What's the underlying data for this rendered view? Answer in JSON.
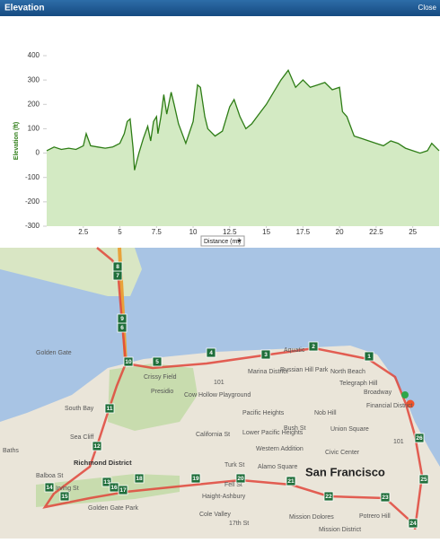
{
  "header": {
    "title": "Elevation",
    "close": "Close"
  },
  "chart_data": {
    "type": "area",
    "y_label": "Elevation (ft)",
    "x_label": "Distance (mi)",
    "color": "#2e7d16",
    "fill": "#d3eac3",
    "x": [
      0,
      0.5,
      1,
      1.5,
      2,
      2.5,
      2.7,
      3,
      3.5,
      4,
      4.5,
      5,
      5.3,
      5.5,
      5.7,
      5.9,
      6.0,
      6.3,
      6.6,
      6.9,
      7.1,
      7.3,
      7.5,
      7.6,
      7.8,
      8.0,
      8.2,
      8.5,
      8.7,
      9,
      9.5,
      10,
      10.3,
      10.5,
      10.8,
      11,
      11.5,
      12,
      12.5,
      12.8,
      13.2,
      13.6,
      14,
      14.5,
      15,
      15.5,
      16,
      16.5,
      17,
      17.5,
      18,
      18.5,
      19,
      19.5,
      20,
      20.2,
      20.5,
      21,
      21.5,
      22,
      22.5,
      23,
      23.5,
      24,
      24.5,
      25,
      25.5,
      26,
      26.3,
      26.8
    ],
    "values": [
      10,
      25,
      15,
      20,
      15,
      30,
      80,
      30,
      25,
      20,
      25,
      40,
      80,
      130,
      140,
      20,
      -70,
      0,
      60,
      110,
      50,
      130,
      150,
      80,
      150,
      240,
      160,
      250,
      200,
      120,
      40,
      130,
      280,
      270,
      150,
      100,
      70,
      90,
      190,
      220,
      150,
      100,
      120,
      160,
      200,
      250,
      300,
      340,
      270,
      300,
      270,
      280,
      290,
      260,
      270,
      170,
      150,
      70,
      60,
      50,
      40,
      30,
      50,
      40,
      20,
      10,
      0,
      10,
      40,
      10
    ],
    "xlim": [
      0,
      26.8
    ],
    "ylim": [
      -300,
      400
    ],
    "xticks": [
      2.5,
      5,
      7.5,
      10,
      12.5,
      15,
      17.5,
      20,
      22.5,
      25
    ],
    "yticks": [
      -300,
      -200,
      -100,
      0,
      100,
      200,
      300,
      400
    ]
  },
  "map": {
    "labels": [
      "Golden Gate",
      "South Bay",
      "Sea Cliff",
      "Baths",
      "Richmond District",
      "Balboa St",
      "Irving St",
      "Golden Gate Park",
      "Presidio",
      "Crissy Field",
      "Cow Hollow Playground",
      "Marina District",
      "Russian Hill Park",
      "Aquatic",
      "North Beach",
      "Telegraph Hill",
      "Broadway",
      "Nob Hill",
      "Financial District",
      "Pacific Heights",
      "Lower Pacific Heights",
      "California St",
      "Western Addition",
      "Alamo Square",
      "Civic Center",
      "Union Square",
      "San Francisco",
      "Haight-Ashbury",
      "Cole Valley",
      "Mission Dolores",
      "Mission District",
      "Potrero Hill",
      "Turk St",
      "Fell St",
      "17th St",
      "Bush St",
      "101",
      "101"
    ],
    "markers": [
      "1",
      "2",
      "3",
      "4",
      "5",
      "6",
      "7",
      "8",
      "9",
      "10",
      "11",
      "12",
      "13",
      "14",
      "15",
      "16",
      "17",
      "18",
      "19",
      "20",
      "21",
      "22",
      "23",
      "24",
      "25",
      "26"
    ]
  }
}
